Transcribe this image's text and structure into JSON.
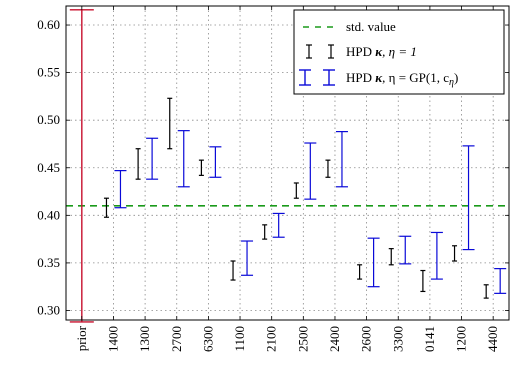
{
  "chart_data": {
    "type": "errorbar",
    "categories": [
      "prior",
      "1400",
      "1300",
      "2700",
      "6300",
      "1100",
      "2100",
      "2500",
      "2400",
      "2600",
      "3300",
      "0141",
      "1200",
      "4400"
    ],
    "ylim": [
      0.29,
      0.62
    ],
    "yticks": [
      0.3,
      0.35,
      0.4,
      0.45,
      0.5,
      0.55,
      0.6
    ],
    "ytick_labels": [
      "0.30",
      "0.35",
      "0.40",
      "0.45",
      "0.50",
      "0.55",
      "0.60"
    ],
    "grid": true,
    "legend_position": "top-right",
    "reference_line": {
      "name": "std. value",
      "y": 0.41,
      "color": "#1a9a1a"
    },
    "series": [
      {
        "name": "HPD κ, η = 1",
        "legend_main": "HPD ",
        "legend_kappa": "κ",
        "legend_rest": ", η = 1",
        "color": "#000000",
        "intervals": [
          null,
          [
            0.398,
            0.418
          ],
          [
            0.438,
            0.47
          ],
          [
            0.47,
            0.523
          ],
          [
            0.442,
            0.458
          ],
          [
            0.332,
            0.352
          ],
          [
            0.375,
            0.39
          ],
          [
            0.418,
            0.434
          ],
          [
            0.44,
            0.458
          ],
          [
            0.333,
            0.348
          ],
          [
            0.348,
            0.365
          ],
          [
            0.32,
            0.342
          ],
          [
            0.352,
            0.368
          ],
          [
            0.313,
            0.327
          ]
        ]
      },
      {
        "name": "HPD κ, η = GP(1, cη)",
        "legend_main": "HPD ",
        "legend_kappa": "κ",
        "legend_rest": ", η = GP(1, c",
        "legend_sub": "η",
        "legend_close": ")",
        "color": "#0a0ad8",
        "intervals": [
          null,
          [
            0.408,
            0.447
          ],
          [
            0.438,
            0.481
          ],
          [
            0.43,
            0.489
          ],
          [
            0.44,
            0.472
          ],
          [
            0.337,
            0.373
          ],
          [
            0.377,
            0.402
          ],
          [
            0.417,
            0.476
          ],
          [
            0.43,
            0.488
          ],
          [
            0.325,
            0.376
          ],
          [
            0.349,
            0.378
          ],
          [
            0.333,
            0.382
          ],
          [
            0.364,
            0.473
          ],
          [
            0.318,
            0.344
          ]
        ]
      },
      {
        "name": "prior",
        "color": "#c8102e",
        "intervals": [
          [
            0.288,
            0.616
          ],
          null,
          null,
          null,
          null,
          null,
          null,
          null,
          null,
          null,
          null,
          null,
          null,
          null
        ]
      }
    ]
  }
}
